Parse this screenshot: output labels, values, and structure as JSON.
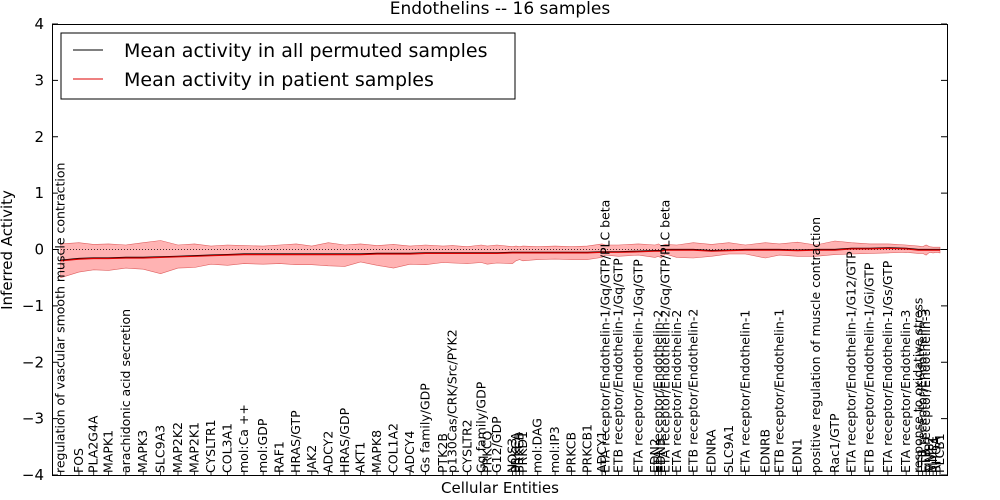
{
  "chart_data": {
    "type": "line",
    "title": "Endothelins -- 16 samples",
    "xlabel": "Cellular Entities",
    "ylabel": "Inferred Activity",
    "ylim": [
      -4,
      4
    ],
    "yticks": [
      "4",
      "3",
      "2",
      "1",
      "0",
      "−1",
      "−2",
      "−3",
      "−4"
    ],
    "legend": {
      "placement": "top-left",
      "entries": [
        {
          "label": "Mean activity in all permuted samples",
          "color": "#000000"
        },
        {
          "label": "Mean activity in patient samples",
          "color": "#dd0000"
        }
      ]
    },
    "band_color": "#ff8080",
    "categories": [
      "regulation of vascular smooth muscle contraction",
      "FOS",
      "PLA2G4A",
      "MAPK1",
      "arachidonic acid secretion",
      "MAPK3",
      "SLC9A3",
      "MAP2K2",
      "MAP2K1",
      "CYSLTR1",
      "COL3A1",
      "mol:Ca ++",
      "mol:GDP",
      "RAF1",
      "HRAS/GTP",
      "JAK2",
      "ADCY2",
      "HRAS/GDP",
      "AKT1",
      "MAPK8",
      "COL1A2",
      "ADCY4",
      "Gs family/GDP",
      "PTK2B",
      "p130Cas/CRK/Src/PYK2",
      "CYSLTR2",
      "Gq family/GDP",
      "PRKCQ",
      "G12/GDP",
      "NOS3",
      "PRKCA",
      "PRKCB",
      "PRKD1",
      "mol:DAG",
      "mol:IP3",
      "PRKCB",
      "PRKCB1",
      "ADCY1",
      "ETA receptor/Endothelin-1/Gq/GTP/PLC beta",
      "ETB receptor/Endothelin-1/Gq/GTP",
      "ETA receptor/Endothelin-1/Gq/GTP",
      "EDN2",
      "ETA receptor/Endothelin-2",
      "EDN3",
      "ETA receptor/Endothelin-2/Gq/GTP/PLC beta",
      "ETA receptor/Endothelin-2",
      "ETB receptor/Endothelin-2",
      "EDNRA",
      "SLC9A1",
      "ETA receptor/Endothelin-1",
      "EDNRB",
      "ETB receptor/Endothelin-1",
      "EDN1",
      "positive regulation of muscle contraction",
      "Rac1/GTP",
      "ETA receptor/Endothelin-1/G12/GTP",
      "ETB receptor/Endothelin-1/Gi/GTP",
      "ETA receptor/Endothelin-1/Gs/GTP",
      "ETA receptor/Endothelin-3",
      "response to oxidative stress",
      "ETB receptor/Endothelin-3",
      "ETB receptor/Endothelin-3",
      "MMP2",
      "MMP1",
      "RHOA",
      "PLCB1"
    ],
    "x": [
      0.0,
      2.1,
      3.8,
      5.5,
      7.5,
      9.5,
      11.5,
      13.5,
      15.4,
      17.3,
      19.2,
      21.1,
      23.3,
      25.2,
      27.1,
      28.9,
      30.8,
      32.7,
      34.5,
      36.4,
      38.3,
      40.2,
      42.0,
      44.0,
      45.1,
      46.8,
      48.4,
      49.1,
      50.2,
      52.0,
      52.4,
      52.8,
      53.2,
      54.9,
      56.9,
      58.8,
      60.6,
      62.3,
      62.7,
      64.2,
      66.5,
      68.4,
      68.8,
      69.1,
      69.6,
      70.9,
      72.8,
      74.9,
      76.9,
      78.8,
      81.1,
      82.7,
      84.8,
      86.9,
      89.1,
      91.0,
      93.1,
      95.2,
      97.3,
      98.7,
      99.2,
      99.6,
      100.0,
      100.4,
      100.8,
      101.2
    ],
    "xlim": [
      -1,
      102
    ],
    "series": [
      {
        "name": "Mean activity in all permuted samples",
        "color": "#000000",
        "values": [
          -0.19,
          -0.16,
          -0.15,
          -0.15,
          -0.14,
          -0.14,
          -0.13,
          -0.12,
          -0.11,
          -0.1,
          -0.09,
          -0.08,
          -0.08,
          -0.08,
          -0.08,
          -0.08,
          -0.08,
          -0.08,
          -0.08,
          -0.07,
          -0.07,
          -0.07,
          -0.06,
          -0.06,
          -0.06,
          -0.06,
          -0.06,
          -0.06,
          -0.06,
          -0.05,
          -0.05,
          -0.05,
          -0.05,
          -0.05,
          -0.05,
          -0.05,
          -0.05,
          -0.04,
          -0.04,
          -0.04,
          -0.03,
          -0.02,
          -0.02,
          -0.02,
          0.0,
          0.0,
          0.0,
          -0.02,
          -0.01,
          0.0,
          0.0,
          0.0,
          -0.01,
          0.0,
          0.0,
          0.02,
          0.02,
          0.03,
          0.02,
          0.0,
          0.0,
          0.0,
          0.0,
          0.0,
          0.0,
          0.0
        ]
      },
      {
        "name": "Mean activity in patient samples",
        "color": "#dd0000",
        "values": [
          -0.2,
          -0.17,
          -0.16,
          -0.16,
          -0.15,
          -0.15,
          -0.14,
          -0.13,
          -0.12,
          -0.11,
          -0.1,
          -0.09,
          -0.09,
          -0.09,
          -0.09,
          -0.09,
          -0.09,
          -0.09,
          -0.09,
          -0.08,
          -0.08,
          -0.08,
          -0.07,
          -0.07,
          -0.07,
          -0.07,
          -0.07,
          -0.07,
          -0.07,
          -0.06,
          -0.06,
          -0.06,
          -0.06,
          -0.06,
          -0.06,
          -0.06,
          -0.06,
          -0.05,
          -0.05,
          -0.05,
          -0.04,
          -0.03,
          -0.03,
          -0.03,
          -0.01,
          -0.01,
          -0.01,
          -0.03,
          -0.02,
          -0.01,
          -0.01,
          -0.01,
          -0.02,
          -0.01,
          -0.01,
          0.01,
          0.01,
          0.02,
          0.01,
          -0.01,
          -0.01,
          -0.01,
          -0.01,
          -0.01,
          -0.01,
          -0.01
        ]
      }
    ],
    "band_upper": [
      0.1,
      0.12,
      0.09,
      0.1,
      0.08,
      0.12,
      0.16,
      0.08,
      0.1,
      0.06,
      0.08,
      0.07,
      0.06,
      0.08,
      0.1,
      0.06,
      0.12,
      0.08,
      0.1,
      0.07,
      0.09,
      0.06,
      0.08,
      0.06,
      0.07,
      0.05,
      0.08,
      0.06,
      0.08,
      0.05,
      0.06,
      0.05,
      0.06,
      0.05,
      0.06,
      0.05,
      0.06,
      0.1,
      0.08,
      0.08,
      0.1,
      0.08,
      0.1,
      0.07,
      0.09,
      0.08,
      0.12,
      0.09,
      0.12,
      0.08,
      0.12,
      0.1,
      0.13,
      0.08,
      0.15,
      0.12,
      0.1,
      0.1,
      0.08,
      0.06,
      0.05,
      0.08,
      0.05,
      0.04,
      0.04,
      0.04
    ],
    "band_lower": [
      -0.5,
      -0.4,
      -0.36,
      -0.37,
      -0.33,
      -0.35,
      -0.43,
      -0.33,
      -0.32,
      -0.26,
      -0.28,
      -0.25,
      -0.26,
      -0.25,
      -0.27,
      -0.27,
      -0.29,
      -0.3,
      -0.22,
      -0.28,
      -0.33,
      -0.26,
      -0.27,
      -0.23,
      -0.24,
      -0.25,
      -0.23,
      -0.26,
      -0.24,
      -0.25,
      -0.2,
      -0.18,
      -0.2,
      -0.18,
      -0.17,
      -0.18,
      -0.18,
      -0.14,
      -0.1,
      -0.12,
      -0.1,
      -0.14,
      -0.12,
      -0.15,
      -0.08,
      -0.14,
      -0.15,
      -0.12,
      -0.08,
      -0.08,
      -0.15,
      -0.1,
      -0.12,
      -0.12,
      -0.09,
      -0.08,
      -0.07,
      -0.06,
      -0.05,
      -0.07,
      -0.07,
      -0.1,
      -0.05,
      -0.06,
      -0.05,
      -0.06
    ]
  }
}
